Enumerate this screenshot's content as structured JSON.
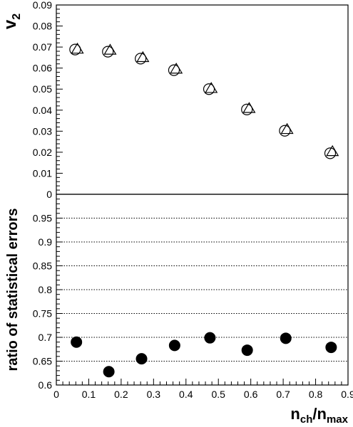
{
  "chart_data": [
    {
      "type": "scatter",
      "ylabel_main": "v",
      "ylabel_sub": "2",
      "xlim": [
        0,
        0.9
      ],
      "ylim": [
        0,
        0.09
      ],
      "yticks": [
        "0",
        "0.01",
        "0.02",
        "0.03",
        "0.04",
        "0.05",
        "0.06",
        "0.07",
        "0.08",
        "0.09"
      ],
      "grid": false,
      "series": [
        {
          "marker": "open-circle",
          "x": [
            0.058,
            0.159,
            0.26,
            0.363,
            0.471,
            0.588,
            0.705,
            0.845
          ],
          "y": [
            0.0688,
            0.0678,
            0.0645,
            0.059,
            0.05,
            0.0403,
            0.0302,
            0.0195
          ]
        },
        {
          "marker": "open-triangle",
          "x": [
            0.065,
            0.166,
            0.267,
            0.37,
            0.478,
            0.595,
            0.712,
            0.852
          ],
          "y": [
            0.069,
            0.0685,
            0.065,
            0.0595,
            0.0503,
            0.0408,
            0.0308,
            0.0203
          ]
        }
      ]
    },
    {
      "type": "scatter",
      "ylabel": "ratio of statistical errors",
      "xlabel_main_1": "n",
      "xlabel_sub_1": "ch",
      "xlabel_slash": "/",
      "xlabel_main_2": "n",
      "xlabel_sub_2": "max",
      "xlim": [
        0,
        0.9
      ],
      "ylim": [
        0.6,
        1.0
      ],
      "xticks": [
        "0",
        "0.1",
        "0.2",
        "0.3",
        "0.4",
        "0.5",
        "0.6",
        "0.7",
        "0.8",
        "0.9"
      ],
      "yticks": [
        "0.6",
        "0.65",
        "0.7",
        "0.75",
        "0.8",
        "0.85",
        "0.9",
        "0.95"
      ],
      "grid": "horizontal-dotted",
      "series": [
        {
          "marker": "filled-circle",
          "x": [
            0.062,
            0.162,
            0.263,
            0.365,
            0.474,
            0.589,
            0.708,
            0.848
          ],
          "y": [
            0.69,
            0.628,
            0.655,
            0.683,
            0.699,
            0.673,
            0.698,
            0.679
          ]
        }
      ]
    }
  ]
}
